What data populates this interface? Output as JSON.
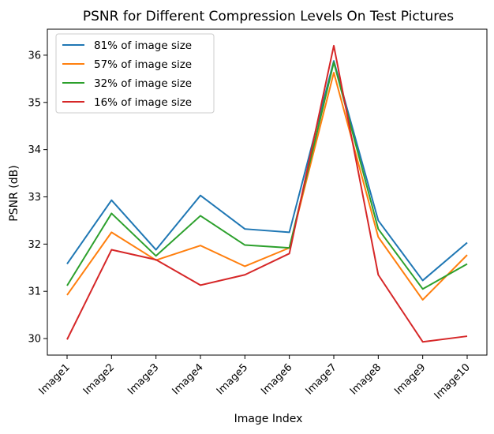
{
  "chart_data": {
    "type": "line",
    "title": "PSNR for Different Compression Levels On Test Pictures",
    "xlabel": "Image Index",
    "ylabel": "PSNR (dB)",
    "categories": [
      "Image1",
      "Image2",
      "Image3",
      "Image4",
      "Image5",
      "Image6",
      "Image7",
      "Image8",
      "Image9",
      "Image10"
    ],
    "yticks": [
      30,
      31,
      32,
      33,
      34,
      35,
      36
    ],
    "ylim": [
      29.65,
      36.55
    ],
    "grid": false,
    "legend_position": "upper-left",
    "series": [
      {
        "name": "81% of image size",
        "color": "#1f77b4",
        "values": [
          31.58,
          32.93,
          31.88,
          33.03,
          32.32,
          32.25,
          35.88,
          32.5,
          31.23,
          32.03
        ]
      },
      {
        "name": "57% of image size",
        "color": "#ff7f0e",
        "values": [
          30.92,
          32.25,
          31.66,
          31.97,
          31.53,
          31.92,
          35.63,
          32.15,
          30.82,
          31.77
        ]
      },
      {
        "name": "32% of image size",
        "color": "#2ca02c",
        "values": [
          31.12,
          32.65,
          31.75,
          32.6,
          31.98,
          31.92,
          35.85,
          32.32,
          31.05,
          31.58
        ]
      },
      {
        "name": "16% of image size",
        "color": "#d62728",
        "values": [
          29.98,
          31.88,
          31.67,
          31.13,
          31.35,
          31.8,
          36.2,
          31.35,
          29.93,
          30.05
        ]
      }
    ]
  }
}
